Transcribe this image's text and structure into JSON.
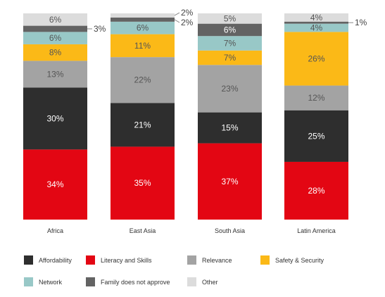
{
  "chart_data": {
    "type": "bar",
    "stacked": true,
    "normalized": true,
    "categories": [
      "Africa",
      "East Asia",
      "South Asia",
      "Latin America"
    ],
    "series": [
      {
        "name": "Literacy and Skills",
        "color": "#e30613",
        "values": [
          34,
          35,
          37,
          28
        ],
        "labels": [
          "34%",
          "35%",
          "37%",
          "28%"
        ]
      },
      {
        "name": "Affordability",
        "color": "#2e2e2e",
        "values": [
          30,
          21,
          15,
          25
        ],
        "labels": [
          "30%",
          "21%",
          "15%",
          "25%"
        ]
      },
      {
        "name": "Relevance",
        "color": "#a3a3a3",
        "values": [
          13,
          22,
          23,
          12
        ],
        "labels": [
          "13%",
          "22%",
          "23%",
          "12%"
        ]
      },
      {
        "name": "Safety & Security",
        "color": "#fbb917",
        "values": [
          8,
          11,
          7,
          26
        ],
        "labels": [
          "8%",
          "11%",
          "7%",
          "26%"
        ]
      },
      {
        "name": "Network",
        "color": "#98c8c7",
        "values": [
          6,
          6,
          7,
          4
        ],
        "labels": [
          "6%",
          "6%",
          "7%",
          "4%"
        ]
      },
      {
        "name": "Family does not approve",
        "color": "#636363",
        "values": [
          3,
          2,
          6,
          1
        ],
        "labels": [
          "3%",
          "2%",
          "6%",
          "1%"
        ]
      },
      {
        "name": "Other",
        "color": "#dcdcdc",
        "values": [
          6,
          2,
          5,
          4
        ],
        "labels": [
          "6%",
          "2%",
          "5%",
          "4%"
        ]
      }
    ],
    "label_colors": {
      "dark_bg": "#ffffff",
      "light_bg": "#555555"
    },
    "outside_labels": [
      {
        "category": 0,
        "series": 5,
        "text": "3%"
      },
      {
        "category": 1,
        "series": 6,
        "text": "2%"
      },
      {
        "category": 1,
        "series": 5,
        "text": "2%"
      },
      {
        "category": 3,
        "series": 5,
        "text": "1%"
      }
    ],
    "legend_rows": [
      [
        "Affordability",
        "Literacy and Skills",
        "Relevance",
        "Safety & Security"
      ],
      [
        "Network",
        "Family does not approve",
        "Other"
      ]
    ],
    "legend_placement": "bottom",
    "ylim": [
      0,
      100
    ],
    "grid": false,
    "title": "",
    "xlabel": "",
    "ylabel": ""
  }
}
